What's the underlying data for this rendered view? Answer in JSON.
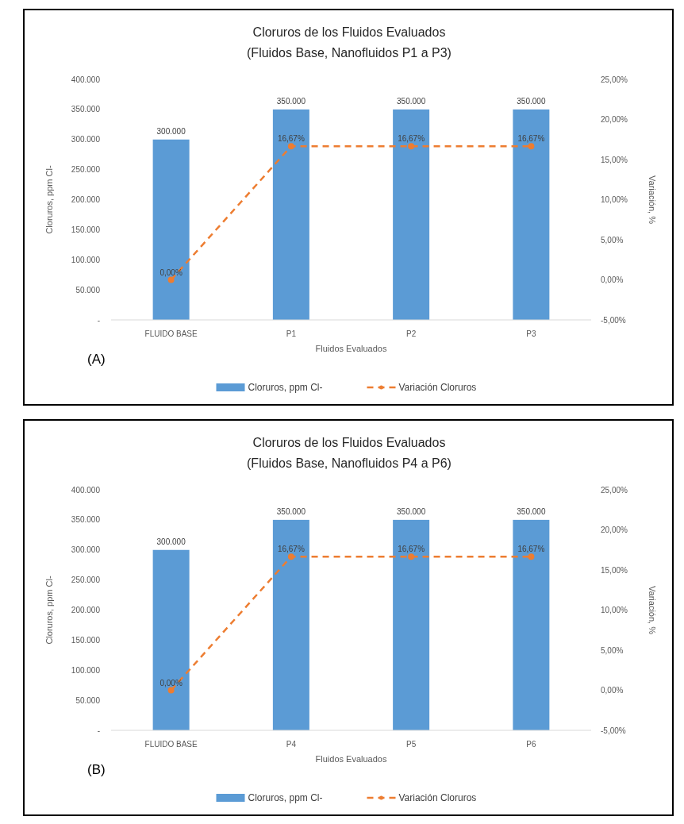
{
  "chart_data": [
    {
      "type": "bar",
      "title": "Cloruros de los Fluidos Evaluados",
      "subtitle": "(Fluidos Base, Nanofluidos P1 a P3)",
      "xlabel": "Fluidos Evaluados",
      "ylabel": "Cloruros, ppm Cl-",
      "y2label": "Variación, %",
      "categories": [
        "FLUIDO BASE",
        "P1",
        "P2",
        "P3"
      ],
      "series": [
        {
          "name": "Cloruros, ppm Cl-",
          "color": "#5b9bd5",
          "values": [
            300000,
            350000,
            350000,
            350000
          ],
          "value_labels": [
            "300.000",
            "350.000",
            "350.000",
            "350.000"
          ]
        },
        {
          "name": "Variación Cloruros",
          "type": "line",
          "axis": "y2",
          "color": "#ed7d31",
          "marker": "circle",
          "line_style": "dashed",
          "values": [
            0,
            16.67,
            16.67,
            16.67
          ],
          "value_labels": [
            "0,00%",
            "16,67%",
            "16,67%",
            "16,67%"
          ]
        }
      ],
      "ylim": [
        0,
        400000
      ],
      "yticks": [
        {
          "value": 0,
          "label": "-"
        },
        {
          "value": 50000,
          "label": "50.000"
        },
        {
          "value": 100000,
          "label": "100.000"
        },
        {
          "value": 150000,
          "label": "150.000"
        },
        {
          "value": 200000,
          "label": "200.000"
        },
        {
          "value": 250000,
          "label": "250.000"
        },
        {
          "value": 300000,
          "label": "300.000"
        },
        {
          "value": 350000,
          "label": "350.000"
        },
        {
          "value": 400000,
          "label": "400.000"
        }
      ],
      "y2lim": [
        -5,
        25
      ],
      "y2ticks": [
        {
          "value": -5,
          "label": "-5,00%"
        },
        {
          "value": 0,
          "label": "0,00%"
        },
        {
          "value": 5,
          "label": "5,00%"
        },
        {
          "value": 10,
          "label": "10,00%"
        },
        {
          "value": 15,
          "label": "15,00%"
        },
        {
          "value": 20,
          "label": "20,00%"
        },
        {
          "value": 25,
          "label": "25,00%"
        }
      ],
      "legend": "bottom",
      "grid": false,
      "annotations": [
        "(A)"
      ]
    },
    {
      "type": "bar",
      "title": "Cloruros de los Fluidos Evaluados",
      "subtitle": "(Fluidos Base, Nanofluidos P4 a P6)",
      "xlabel": "Fluidos Evaluados",
      "ylabel": "Cloruros, ppm Cl-",
      "y2label": "Variación, %",
      "categories": [
        "FLUIDO BASE",
        "P4",
        "P5",
        "P6"
      ],
      "series": [
        {
          "name": "Cloruros, ppm Cl-",
          "color": "#5b9bd5",
          "values": [
            300000,
            350000,
            350000,
            350000
          ],
          "value_labels": [
            "300.000",
            "350.000",
            "350.000",
            "350.000"
          ]
        },
        {
          "name": "Variación Cloruros",
          "type": "line",
          "axis": "y2",
          "color": "#ed7d31",
          "marker": "circle",
          "line_style": "dashed",
          "values": [
            0,
            16.67,
            16.67,
            16.67
          ],
          "value_labels": [
            "0,00%",
            "16,67%",
            "16,67%",
            "16,67%"
          ]
        }
      ],
      "ylim": [
        0,
        400000
      ],
      "yticks": [
        {
          "value": 0,
          "label": "-"
        },
        {
          "value": 50000,
          "label": "50.000"
        },
        {
          "value": 100000,
          "label": "100.000"
        },
        {
          "value": 150000,
          "label": "150.000"
        },
        {
          "value": 200000,
          "label": "200.000"
        },
        {
          "value": 250000,
          "label": "250.000"
        },
        {
          "value": 300000,
          "label": "300.000"
        },
        {
          "value": 350000,
          "label": "350.000"
        },
        {
          "value": 400000,
          "label": "400.000"
        }
      ],
      "y2lim": [
        -5,
        25
      ],
      "y2ticks": [
        {
          "value": -5,
          "label": "-5,00%"
        },
        {
          "value": 0,
          "label": "0,00%"
        },
        {
          "value": 5,
          "label": "5,00%"
        },
        {
          "value": 10,
          "label": "10,00%"
        },
        {
          "value": 15,
          "label": "15,00%"
        },
        {
          "value": 20,
          "label": "20,00%"
        },
        {
          "value": 25,
          "label": "25,00%"
        }
      ],
      "legend": "bottom",
      "grid": false,
      "annotations": [
        "(B)"
      ]
    }
  ]
}
